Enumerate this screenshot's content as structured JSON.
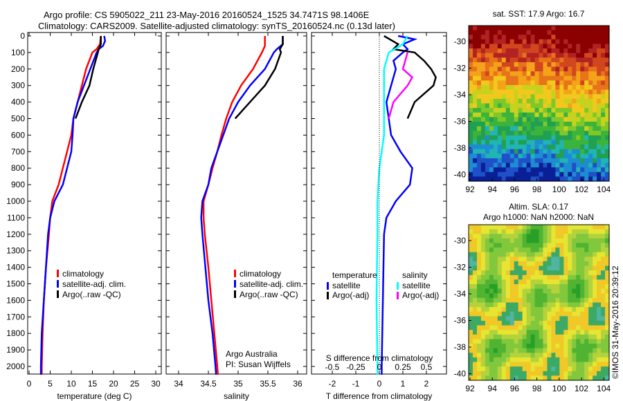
{
  "title": {
    "line1": "Argo profile: CS 5905022_211 23-May-2016 20160524_1525 34.7471S 98.1406E",
    "line2": "Climatology: CARS2009. Satellite-adjusted climatology: synTS_20160524.nc (0.13d later)"
  },
  "credit": "©IMOS 31-May-2016 20:39:12",
  "chart_data": [
    {
      "type": "line",
      "xlabel": "temperature (deg C)",
      "xlim": [
        0,
        31
      ],
      "xticks": [
        "0",
        "5",
        "10",
        "15",
        "20",
        "25",
        "30"
      ],
      "ylim": [
        0,
        2050
      ],
      "yticks": [
        "0",
        "100",
        "200",
        "300",
        "400",
        "500",
        "600",
        "700",
        "800",
        "900",
        "1000",
        "1100",
        "1200",
        "1300",
        "1400",
        "1500",
        "1600",
        "1700",
        "1800",
        "1900",
        "2000"
      ],
      "legend": [
        "climatology",
        "satellite-adj. clim.",
        "Argo(..raw -QC)"
      ],
      "series": [
        {
          "name": "climatology",
          "color": "#ff0000",
          "points": [
            [
              17,
              0
            ],
            [
              16.8,
              50
            ],
            [
              16,
              80
            ],
            [
              15,
              100
            ],
            [
              13.5,
              200
            ],
            [
              12.5,
              300
            ],
            [
              11.5,
              400
            ],
            [
              10.5,
              500
            ],
            [
              10,
              600
            ],
            [
              9,
              700
            ],
            [
              8,
              800
            ],
            [
              7,
              900
            ],
            [
              5.5,
              1000
            ],
            [
              5,
              1100
            ],
            [
              4.7,
              1200
            ],
            [
              4,
              1400
            ],
            [
              3.5,
              1600
            ],
            [
              3.2,
              1800
            ],
            [
              3,
              2000
            ],
            [
              3,
              2050
            ]
          ]
        },
        {
          "name": "satellite-adj. clim.",
          "color": "#0000ff",
          "points": [
            [
              17.8,
              0
            ],
            [
              18,
              30
            ],
            [
              17.5,
              60
            ],
            [
              16.5,
              80
            ],
            [
              16,
              100
            ],
            [
              14.5,
              200
            ],
            [
              13,
              300
            ],
            [
              11.5,
              400
            ],
            [
              10.5,
              500
            ],
            [
              10.3,
              600
            ],
            [
              10,
              700
            ],
            [
              9,
              800
            ],
            [
              8,
              900
            ],
            [
              6,
              1000
            ],
            [
              5,
              1100
            ],
            [
              4.5,
              1200
            ],
            [
              4,
              1400
            ],
            [
              3.5,
              1600
            ],
            [
              3,
              1800
            ],
            [
              2.8,
              2000
            ],
            [
              2.8,
              2050
            ]
          ]
        },
        {
          "name": "Argo(..raw -QC)",
          "color": "#000000",
          "points": [
            [
              17,
              0
            ],
            [
              17,
              50
            ],
            [
              16.5,
              80
            ],
            [
              16.3,
              100
            ],
            [
              15.2,
              200
            ],
            [
              14.3,
              300
            ],
            [
              12.5,
              400
            ],
            [
              11,
              500
            ]
          ]
        }
      ]
    },
    {
      "type": "line",
      "xlabel": "salinity",
      "xlim": [
        33.8,
        36.1
      ],
      "xticks": [
        "34",
        "34.5",
        "35",
        "35.5",
        "36"
      ],
      "ylim": [
        0,
        2050
      ],
      "legend": [
        "climatology",
        "satellite-adj. clim.",
        "Argo(..raw -QC)"
      ],
      "annotation": [
        "Argo Australia",
        "PI: Susan Wijffels"
      ],
      "series": [
        {
          "name": "climatology",
          "color": "#ff0000",
          "points": [
            [
              35.45,
              0
            ],
            [
              35.45,
              60
            ],
            [
              35.4,
              100
            ],
            [
              35.25,
              200
            ],
            [
              35.05,
              300
            ],
            [
              34.9,
              400
            ],
            [
              34.8,
              500
            ],
            [
              34.72,
              600
            ],
            [
              34.65,
              700
            ],
            [
              34.57,
              800
            ],
            [
              34.5,
              900
            ],
            [
              34.42,
              1000
            ],
            [
              34.42,
              1100
            ],
            [
              34.44,
              1200
            ],
            [
              34.5,
              1400
            ],
            [
              34.55,
              1600
            ],
            [
              34.6,
              1800
            ],
            [
              34.65,
              2000
            ],
            [
              34.66,
              2050
            ]
          ]
        },
        {
          "name": "satellite-adj. clim.",
          "color": "#0000ff",
          "points": [
            [
              35.75,
              0
            ],
            [
              35.75,
              50
            ],
            [
              35.65,
              80
            ],
            [
              35.6,
              100
            ],
            [
              35.45,
              200
            ],
            [
              35.2,
              300
            ],
            [
              35,
              400
            ],
            [
              34.85,
              500
            ],
            [
              34.75,
              600
            ],
            [
              34.65,
              700
            ],
            [
              34.55,
              800
            ],
            [
              34.5,
              900
            ],
            [
              34.4,
              1000
            ],
            [
              34.38,
              1100
            ],
            [
              34.4,
              1200
            ],
            [
              34.45,
              1400
            ],
            [
              34.5,
              1600
            ],
            [
              34.57,
              1800
            ],
            [
              34.62,
              2000
            ],
            [
              34.63,
              2050
            ]
          ]
        },
        {
          "name": "Argo(..raw -QC)",
          "color": "#000000",
          "points": [
            [
              35.75,
              0
            ],
            [
              35.75,
              50
            ],
            [
              35.7,
              80
            ],
            [
              35.72,
              100
            ],
            [
              35.62,
              200
            ],
            [
              35.45,
              300
            ],
            [
              35.2,
              400
            ],
            [
              34.95,
              500
            ]
          ]
        }
      ]
    },
    {
      "type": "line",
      "xlabel": "T difference from climatology",
      "x2label": "S difference from climatology",
      "xlim": [
        -2.9,
        2.9
      ],
      "xticks": [
        "-2",
        "-1",
        "0",
        "1",
        "2"
      ],
      "x2ticks": [
        "-0.5",
        "-0.25",
        "0",
        "0.25",
        "0.5"
      ],
      "ylim": [
        0,
        2050
      ],
      "legend": {
        "temp_title": "temperature",
        "sal_title": "salinity",
        "items": [
          "satellite",
          "Argo(-adj)",
          "satellite",
          "Argo(-adj)"
        ]
      },
      "series": [
        {
          "name": "T satellite",
          "color": "#0000ff",
          "unit": "T",
          "points": [
            [
              0.8,
              0
            ],
            [
              1.5,
              20
            ],
            [
              1,
              50
            ],
            [
              1.2,
              80
            ],
            [
              1,
              100
            ],
            [
              0.6,
              150
            ],
            [
              0.7,
              200
            ],
            [
              0.5,
              300
            ],
            [
              0.3,
              400
            ],
            [
              0.4,
              500
            ],
            [
              0.5,
              600
            ],
            [
              0.9,
              700
            ],
            [
              1.4,
              800
            ],
            [
              1.3,
              900
            ],
            [
              0.7,
              1000
            ],
            [
              0.3,
              1100
            ],
            [
              0.2,
              1200
            ],
            [
              0.15,
              1600
            ],
            [
              0.1,
              2000
            ],
            [
              0.1,
              2050
            ]
          ]
        },
        {
          "name": "T Argo(-adj)",
          "color": "#000000",
          "unit": "T",
          "points": [
            [
              0.2,
              0
            ],
            [
              0.8,
              50
            ],
            [
              0.6,
              80
            ],
            [
              1.5,
              100
            ],
            [
              1.9,
              150
            ],
            [
              2.2,
              200
            ],
            [
              2.4,
              250
            ],
            [
              2.3,
              300
            ],
            [
              1.5,
              400
            ],
            [
              1.2,
              500
            ]
          ]
        },
        {
          "name": "S satellite",
          "color": "#00ffff",
          "unit": "S",
          "points": [
            [
              0.3,
              0
            ],
            [
              0.25,
              50
            ],
            [
              0.1,
              100
            ],
            [
              0.05,
              200
            ],
            [
              0.05,
              400
            ],
            [
              0.05,
              600
            ],
            [
              0,
              800
            ],
            [
              -0.02,
              1000
            ],
            [
              -0.02,
              1200
            ],
            [
              -0.03,
              1600
            ],
            [
              -0.02,
              2000
            ],
            [
              -0.02,
              2050
            ]
          ]
        },
        {
          "name": "S Argo(-adj)",
          "color": "#ff00ff",
          "unit": "S",
          "points": [
            [
              0.3,
              100
            ],
            [
              0.25,
              200
            ],
            [
              0.35,
              250
            ],
            [
              0.3,
              300
            ],
            [
              0.15,
              400
            ],
            [
              0.1,
              500
            ]
          ]
        }
      ]
    },
    {
      "type": "heatmap",
      "title": "sat. SST: 17.9 Argo: 16.7",
      "xticks": [
        "92",
        "94",
        "96",
        "98",
        "100",
        "102",
        "104"
      ],
      "yticks": [
        "-30",
        "-32",
        "-34",
        "-36",
        "-38",
        "-40"
      ]
    },
    {
      "type": "heatmap",
      "title": "Altim. SLA: 0.17",
      "subtitle": "Argo h1000: NaN h2000: NaN",
      "xticks": [
        "92",
        "94",
        "96",
        "98",
        "100",
        "102",
        "104"
      ],
      "yticks": [
        "-30",
        "-32",
        "-34",
        "-36",
        "-38",
        "-40"
      ]
    }
  ]
}
